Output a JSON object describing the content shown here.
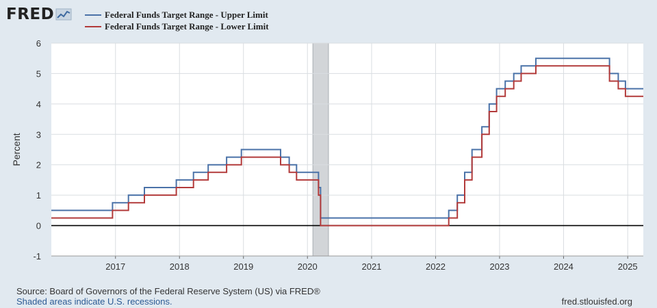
{
  "header": {
    "logo_text": "FRED"
  },
  "colors": {
    "upper": "#4a72a8",
    "lower": "#b23a3a",
    "recession": "#d2d5d8",
    "grid": "#d9dde1",
    "zero_line": "#000000"
  },
  "footer": {
    "source": "Source: Board of Governors of the Federal Reserve System (US) via FRED®",
    "recession_note": "Shaded areas indicate U.S. recessions.",
    "site": "fred.stlouisfed.org"
  },
  "chart_data": {
    "type": "line",
    "step": true,
    "ylabel": "Percent",
    "ylim": [
      -1,
      6
    ],
    "yticks": [
      "-1",
      "0",
      "1",
      "2",
      "3",
      "4",
      "5",
      "6"
    ],
    "xlim": [
      "2016-01-01",
      "2025-03-31"
    ],
    "xticks": [
      "2017",
      "2018",
      "2019",
      "2020",
      "2021",
      "2022",
      "2023",
      "2024",
      "2025"
    ],
    "grid": true,
    "legend": "top-left",
    "recessions": [
      [
        "2020-02-01",
        "2020-04-30"
      ]
    ],
    "series": [
      {
        "name": "Federal Funds Target Range - Upper Limit",
        "color": "#4a72a8",
        "points": [
          [
            "2016-01-01",
            0.5
          ],
          [
            "2016-12-15",
            0.75
          ],
          [
            "2017-03-16",
            1.0
          ],
          [
            "2017-06-15",
            1.25
          ],
          [
            "2017-12-14",
            1.5
          ],
          [
            "2018-03-22",
            1.75
          ],
          [
            "2018-06-14",
            2.0
          ],
          [
            "2018-09-27",
            2.25
          ],
          [
            "2018-12-20",
            2.5
          ],
          [
            "2019-08-01",
            2.25
          ],
          [
            "2019-09-19",
            2.0
          ],
          [
            "2019-10-31",
            1.75
          ],
          [
            "2020-03-04",
            1.25
          ],
          [
            "2020-03-16",
            0.25
          ],
          [
            "2022-03-17",
            0.5
          ],
          [
            "2022-05-05",
            1.0
          ],
          [
            "2022-06-16",
            1.75
          ],
          [
            "2022-07-28",
            2.5
          ],
          [
            "2022-09-22",
            3.25
          ],
          [
            "2022-11-03",
            4.0
          ],
          [
            "2022-12-15",
            4.5
          ],
          [
            "2023-02-02",
            4.75
          ],
          [
            "2023-03-23",
            5.0
          ],
          [
            "2023-05-04",
            5.25
          ],
          [
            "2023-07-27",
            5.5
          ],
          [
            "2024-09-19",
            5.0
          ],
          [
            "2024-11-08",
            4.75
          ],
          [
            "2024-12-19",
            4.5
          ],
          [
            "2025-03-31",
            4.5
          ]
        ]
      },
      {
        "name": "Federal Funds Target Range - Lower Limit",
        "color": "#b23a3a",
        "points": [
          [
            "2016-01-01",
            0.25
          ],
          [
            "2016-12-15",
            0.5
          ],
          [
            "2017-03-16",
            0.75
          ],
          [
            "2017-06-15",
            1.0
          ],
          [
            "2017-12-14",
            1.25
          ],
          [
            "2018-03-22",
            1.5
          ],
          [
            "2018-06-14",
            1.75
          ],
          [
            "2018-09-27",
            2.0
          ],
          [
            "2018-12-20",
            2.25
          ],
          [
            "2019-08-01",
            2.0
          ],
          [
            "2019-09-19",
            1.75
          ],
          [
            "2019-10-31",
            1.5
          ],
          [
            "2020-03-04",
            1.0
          ],
          [
            "2020-03-16",
            0.0
          ],
          [
            "2022-03-17",
            0.25
          ],
          [
            "2022-05-05",
            0.75
          ],
          [
            "2022-06-16",
            1.5
          ],
          [
            "2022-07-28",
            2.25
          ],
          [
            "2022-09-22",
            3.0
          ],
          [
            "2022-11-03",
            3.75
          ],
          [
            "2022-12-15",
            4.25
          ],
          [
            "2023-02-02",
            4.5
          ],
          [
            "2023-03-23",
            4.75
          ],
          [
            "2023-05-04",
            5.0
          ],
          [
            "2023-07-27",
            5.25
          ],
          [
            "2024-09-19",
            4.75
          ],
          [
            "2024-11-08",
            4.5
          ],
          [
            "2024-12-19",
            4.25
          ],
          [
            "2025-03-31",
            4.25
          ]
        ]
      }
    ]
  }
}
